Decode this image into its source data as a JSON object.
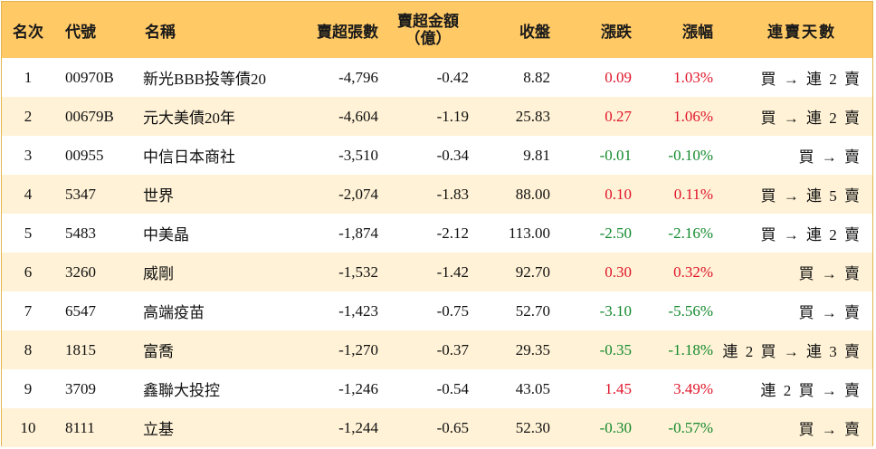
{
  "headers": {
    "rank": "名次",
    "code": "代號",
    "name": "名稱",
    "shares": "賣超張數",
    "amount_line1": "賣超金額",
    "amount_line2": "（億）",
    "close": "收盤",
    "change": "漲跌",
    "pct": "漲幅",
    "days": "連賣天數"
  },
  "colors": {
    "header_bg": "#ffc966",
    "stripe": "#fff2d6",
    "up": "#e0152a",
    "down": "#138a2d"
  },
  "rows": [
    {
      "rank": "1",
      "code": "00970B",
      "name": "新光BBB投等債20",
      "shares": "-4,796",
      "amount": "-0.42",
      "close": "8.82",
      "change": "0.09",
      "pct": "1.03%",
      "days": "買 → 連 2 賣",
      "dir": "up"
    },
    {
      "rank": "2",
      "code": "00679B",
      "name": "元大美債20年",
      "shares": "-4,604",
      "amount": "-1.19",
      "close": "25.83",
      "change": "0.27",
      "pct": "1.06%",
      "days": "買 → 連 2 賣",
      "dir": "up"
    },
    {
      "rank": "3",
      "code": "00955",
      "name": "中信日本商社",
      "shares": "-3,510",
      "amount": "-0.34",
      "close": "9.81",
      "change": "-0.01",
      "pct": "-0.10%",
      "days": "買 → 賣",
      "dir": "down"
    },
    {
      "rank": "4",
      "code": "5347",
      "name": "世界",
      "shares": "-2,074",
      "amount": "-1.83",
      "close": "88.00",
      "change": "0.10",
      "pct": "0.11%",
      "days": "買 → 連 5 賣",
      "dir": "up"
    },
    {
      "rank": "5",
      "code": "5483",
      "name": "中美晶",
      "shares": "-1,874",
      "amount": "-2.12",
      "close": "113.00",
      "change": "-2.50",
      "pct": "-2.16%",
      "days": "買 → 連 2 賣",
      "dir": "down"
    },
    {
      "rank": "6",
      "code": "3260",
      "name": "威剛",
      "shares": "-1,532",
      "amount": "-1.42",
      "close": "92.70",
      "change": "0.30",
      "pct": "0.32%",
      "days": "買 → 賣",
      "dir": "up"
    },
    {
      "rank": "7",
      "code": "6547",
      "name": "高端疫苗",
      "shares": "-1,423",
      "amount": "-0.75",
      "close": "52.70",
      "change": "-3.10",
      "pct": "-5.56%",
      "days": "買 → 賣",
      "dir": "down"
    },
    {
      "rank": "8",
      "code": "1815",
      "name": "富喬",
      "shares": "-1,270",
      "amount": "-0.37",
      "close": "29.35",
      "change": "-0.35",
      "pct": "-1.18%",
      "days": "連 2 買 → 連 3 賣",
      "dir": "down"
    },
    {
      "rank": "9",
      "code": "3709",
      "name": "鑫聯大投控",
      "shares": "-1,246",
      "amount": "-0.54",
      "close": "43.05",
      "change": "1.45",
      "pct": "3.49%",
      "days": "連 2 買 → 賣",
      "dir": "up"
    },
    {
      "rank": "10",
      "code": "8111",
      "name": "立基",
      "shares": "-1,244",
      "amount": "-0.65",
      "close": "52.30",
      "change": "-0.30",
      "pct": "-0.57%",
      "days": "買 → 賣",
      "dir": "down"
    }
  ]
}
